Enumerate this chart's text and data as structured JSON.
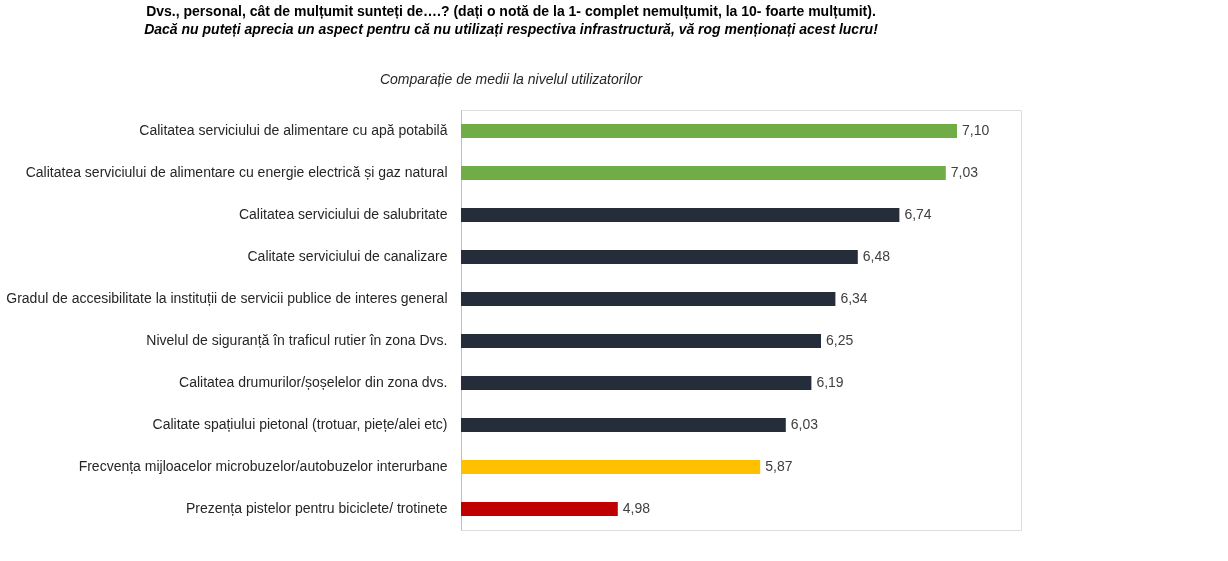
{
  "chart_data": {
    "type": "bar",
    "orientation": "horizontal",
    "title": "Dvs., personal, cât de mulțumit sunteți de….? (dați o notă de la 1- complet nemulțumit, la 10- foarte mulțumit).",
    "subtitle": "Dacă nu puteți aprecia un aspect pentru că nu utilizați respectiva infrastructură, vă rog menționați acest lucru!",
    "annotations": [
      "Comparație de medii la nivelul utilizatorilor"
    ],
    "categories": [
      "Calitatea serviciului de alimentare cu apă potabilă",
      "Calitatea serviciului de alimentare cu energie electrică și gaz natural",
      "Calitatea serviciului de salubritate",
      "Calitate serviciului de canalizare",
      "Gradul de accesibilitate la instituții de servicii publice de interes general",
      "Nivelul de siguranță în traficul rutier în zona Dvs.",
      "Calitatea drumurilor/șoșelelor din zona dvs.",
      "Calitate spațiului pietonal (trotuar, piețe/alei etc)",
      "Frecvența mijloacelor microbuzelor/autobuzelor interurbane",
      "Prezența pistelor pentru biciclete/ trotinete"
    ],
    "values": [
      7.1,
      7.03,
      6.74,
      6.48,
      6.34,
      6.25,
      6.19,
      6.03,
      5.87,
      4.98
    ],
    "value_labels": [
      "7,10",
      "7,03",
      "6,74",
      "6,48",
      "6,34",
      "6,25",
      "6,19",
      "6,03",
      "5,87",
      "4,98"
    ],
    "colors": [
      "#70ad47",
      "#70ad47",
      "#262d3a",
      "#262d3a",
      "#262d3a",
      "#262d3a",
      "#262d3a",
      "#262d3a",
      "#ffc000",
      "#c00000"
    ],
    "xlim": [
      4.0,
      7.5
    ],
    "tick_labels": "y",
    "grid": false
  }
}
